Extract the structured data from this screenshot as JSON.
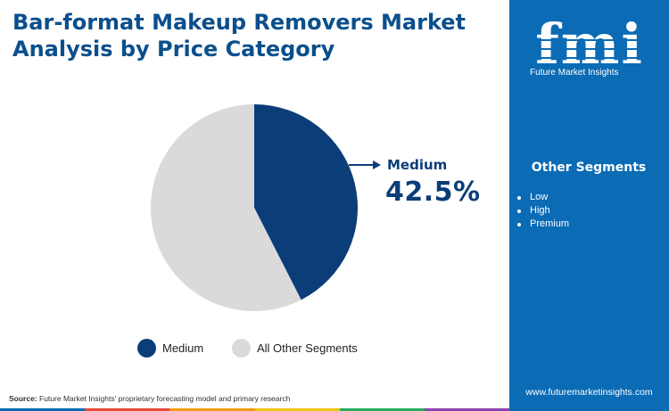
{
  "title": "Bar-format Makeup Removers Market Analysis by Price Category",
  "brand": {
    "logo_text": "fmi",
    "name": "Future Market Insights",
    "website": "www.futuremarketinsights.com"
  },
  "sidebar": {
    "heading": "Other Segments",
    "items": [
      "Low",
      "High",
      "Premium"
    ]
  },
  "callout": {
    "label": "Medium",
    "value": "42.5%"
  },
  "source": {
    "label": "Source:",
    "text": " Future Market Insights' proprietary forecasting model and primary research"
  },
  "colors": {
    "medium": "#0b3d78",
    "other": "#dadada",
    "sidebar": "#0b6bb5",
    "bar": [
      "#0b6bb5",
      "#e84b3c",
      "#f39c12",
      "#f1c40f",
      "#27ae60",
      "#8e44ad"
    ]
  },
  "chart_data": {
    "type": "pie",
    "title": "Bar-format Makeup Removers Market Analysis by Price Category",
    "slices": [
      {
        "label": "Medium",
        "value": 42.5
      },
      {
        "label": "All Other Segments",
        "value": 57.5
      }
    ],
    "legend_placement": "bottom"
  }
}
